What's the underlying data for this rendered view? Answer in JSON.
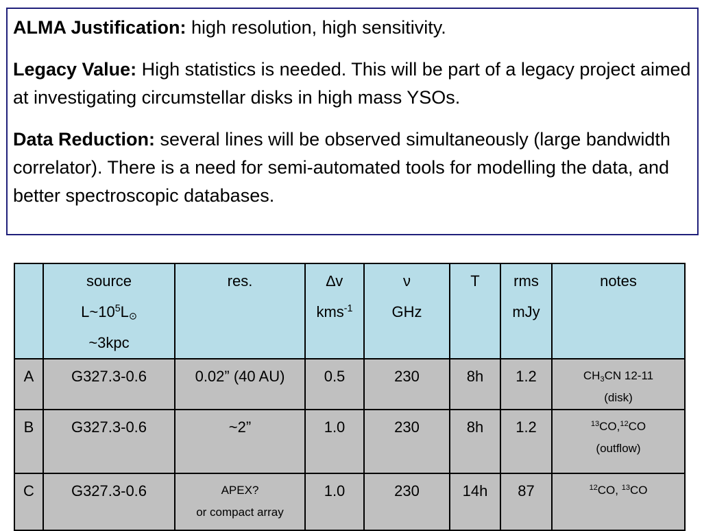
{
  "text_box": {
    "paragraphs": [
      {
        "label": "ALMA Justification:",
        "text": "high resolution, high sensitivity."
      },
      {
        "label": "Legacy Value:",
        "text": "High statistics is needed. This will be part of a legacy project aimed at investigating circumstellar disks in high mass YSOs."
      },
      {
        "label": "Data Reduction:",
        "text": "several lines will be observed simultaneously (large bandwidth correlator). There is a need for semi-automated tools for modelling the data, and better spectroscopic databases."
      }
    ]
  },
  "table": {
    "header": [
      [],
      [
        [
          {
            "t": "source"
          }
        ],
        [
          {
            "t": "L~10"
          },
          {
            "sup": "5"
          },
          {
            "t": "L"
          },
          {
            "sub": "⊙"
          }
        ],
        [
          {
            "t": "~3kpc"
          }
        ]
      ],
      [
        [
          {
            "t": "res."
          }
        ]
      ],
      [
        [
          {
            "t": "∆v"
          }
        ],
        [
          {
            "t": "kms"
          },
          {
            "sup": "-1"
          }
        ]
      ],
      [
        [
          {
            "t": "ν"
          }
        ],
        [
          {
            "t": "GHz"
          }
        ]
      ],
      [
        [
          {
            "t": "T"
          }
        ]
      ],
      [
        [
          {
            "t": "rms"
          }
        ],
        [
          {
            "t": "mJy"
          }
        ]
      ],
      [
        [
          {
            "t": "notes"
          }
        ]
      ]
    ],
    "rows": [
      [
        [
          [
            {
              "t": "A"
            }
          ]
        ],
        [
          [
            {
              "t": "G327.3-0.6"
            }
          ]
        ],
        [
          [
            {
              "t": "0.02” (40 AU)"
            }
          ]
        ],
        [
          [
            {
              "t": "0.5"
            }
          ]
        ],
        [
          [
            {
              "t": "230"
            }
          ]
        ],
        [
          [
            {
              "t": "8h"
            }
          ]
        ],
        [
          [
            {
              "t": "1.2"
            }
          ]
        ],
        [
          [
            {
              "t": "CH"
            },
            {
              "sub": "3"
            },
            {
              "t": "CN 12-11"
            }
          ],
          [
            {
              "t": "(disk)"
            }
          ]
        ]
      ],
      [
        [
          [
            {
              "t": "B"
            }
          ]
        ],
        [
          [
            {
              "t": "G327.3-0.6"
            }
          ]
        ],
        [
          [
            {
              "t": "~2”"
            }
          ]
        ],
        [
          [
            {
              "t": "1.0"
            }
          ]
        ],
        [
          [
            {
              "t": "230"
            }
          ]
        ],
        [
          [
            {
              "t": "8h"
            }
          ]
        ],
        [
          [
            {
              "t": "1.2"
            }
          ]
        ],
        [
          [
            {
              "sup": "13"
            },
            {
              "t": "CO,"
            },
            {
              "sup": "12"
            },
            {
              "t": "CO"
            }
          ],
          [
            {
              "t": "(outflow)"
            }
          ]
        ]
      ],
      [
        [
          [
            {
              "t": "C"
            }
          ]
        ],
        [
          [
            {
              "t": "G327.3-0.6"
            }
          ]
        ],
        [
          [
            {
              "t": "APEX?"
            }
          ],
          [
            {
              "t": "or compact array"
            }
          ]
        ],
        [
          [
            {
              "t": "1.0"
            }
          ]
        ],
        [
          [
            {
              "t": "230"
            }
          ]
        ],
        [
          [
            {
              "t": "14h"
            }
          ]
        ],
        [
          [
            {
              "t": "87"
            }
          ]
        ],
        [
          [
            {
              "sup": "12"
            },
            {
              "t": "CO, "
            },
            {
              "sup": "13"
            },
            {
              "t": "CO"
            }
          ]
        ]
      ]
    ]
  }
}
